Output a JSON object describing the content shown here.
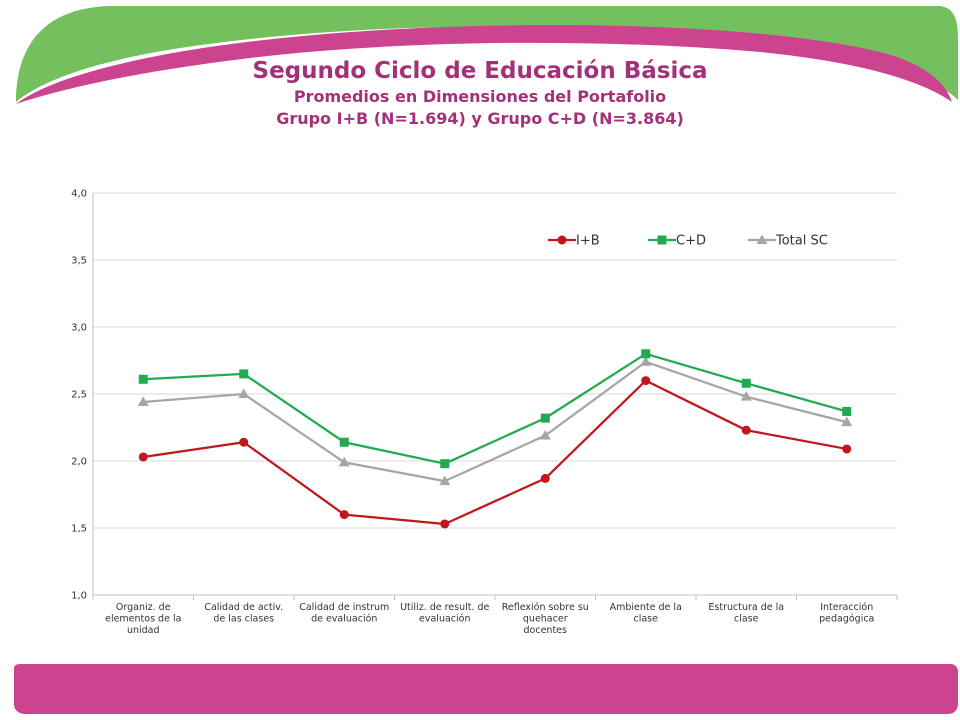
{
  "header": {
    "title": "Segundo Ciclo de Educación Básica",
    "subtitle1": "Promedios en Dimensiones del Portafolio",
    "subtitle2": "Grupo I+B (N=1.694) y Grupo C+D (N=3.864)"
  },
  "colors": {
    "accent_pink": "#cc4490",
    "accent_green": "#74c05e",
    "title": "#a3317a",
    "series_ib": "#c0171c",
    "series_cd": "#1fab4e",
    "series_total": "#a6a6a6"
  },
  "chart_data": {
    "type": "line",
    "title": "",
    "xlabel": "",
    "ylabel": "",
    "ylim": [
      1.0,
      4.0
    ],
    "yticks": [
      "1,0",
      "1,5",
      "2,0",
      "2,5",
      "3,0",
      "3,5",
      "4,0"
    ],
    "grid": true,
    "legend_position": "top-right",
    "categories": [
      [
        "Organiz. de",
        "elementos de la",
        "unidad"
      ],
      [
        "Calidad de activ.",
        "de las clases"
      ],
      [
        "Calidad de instrum",
        "de evaluación"
      ],
      [
        "Utiliz. de result. de",
        "evaluación"
      ],
      [
        "Reflexión sobre su",
        "quehacer",
        "docentes"
      ],
      [
        "Ambiente de la",
        "clase"
      ],
      [
        "Estructura de la",
        "clase"
      ],
      [
        "Interacción",
        "pedagógica"
      ]
    ],
    "series": [
      {
        "name": "I+B",
        "marker": "circle",
        "values": [
          2.03,
          2.14,
          1.6,
          1.53,
          1.87,
          2.6,
          2.23,
          2.09
        ]
      },
      {
        "name": "C+D",
        "marker": "square",
        "values": [
          2.61,
          2.65,
          2.14,
          1.98,
          2.32,
          2.8,
          2.58,
          2.37
        ]
      },
      {
        "name": "Total SC",
        "marker": "triangle",
        "values": [
          2.44,
          2.5,
          1.99,
          1.85,
          2.19,
          2.74,
          2.48,
          2.29
        ]
      }
    ]
  }
}
